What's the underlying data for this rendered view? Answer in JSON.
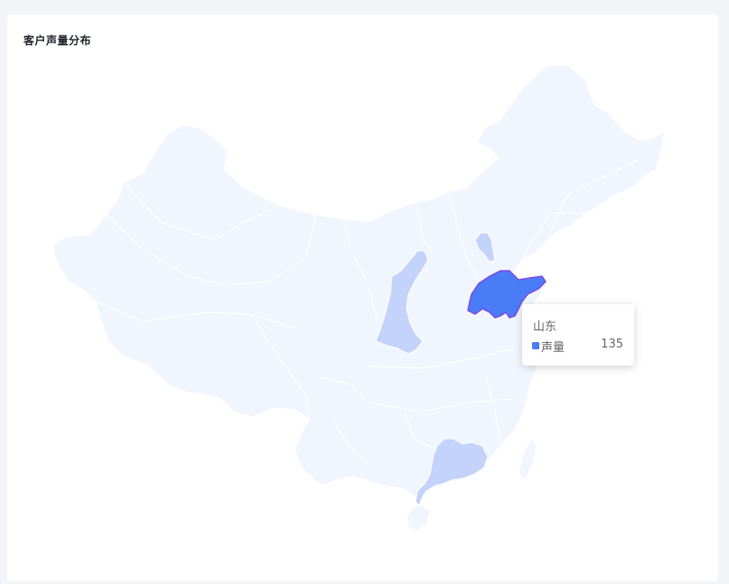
{
  "card": {
    "title": "客户声量分布"
  },
  "map": {
    "region": "china",
    "series_name": "声量",
    "colors": {
      "base": "#f1f6fe",
      "medium": "#c3d3fa",
      "high": "#4a7cf7",
      "highlight_border": "#7b4ae0"
    },
    "provinces": [
      {
        "name": "陕西",
        "level": "medium"
      },
      {
        "name": "广东",
        "level": "medium"
      },
      {
        "name": "天津",
        "level": "medium"
      },
      {
        "name": "山东",
        "level": "high",
        "value": 135
      }
    ]
  },
  "tooltip": {
    "name": "山东",
    "series": "声量",
    "value": "135",
    "marker_color": "#4a7cf7"
  }
}
